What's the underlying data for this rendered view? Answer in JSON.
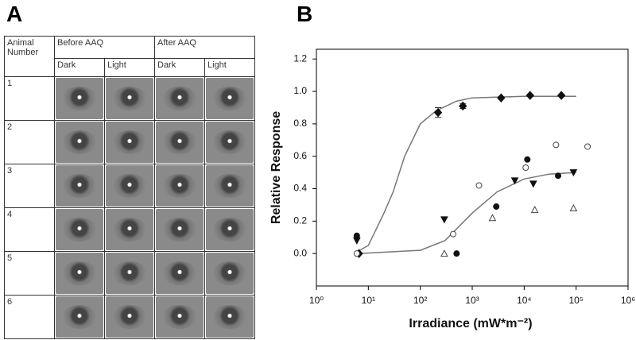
{
  "panel_a": {
    "label": "A",
    "table": {
      "header": [
        "Animal Number",
        "Before AAQ",
        "After AAQ"
      ],
      "subheader": [
        "Dark",
        "Light",
        "Dark",
        "Light"
      ],
      "rows": [
        "1",
        "2",
        "3",
        "4",
        "5",
        "6"
      ]
    }
  },
  "chart_data": {
    "type": "scatter",
    "label": "B",
    "x_label": "Irradiance (mW*m⁻²)",
    "y_label": "Relative Response",
    "x_log": true,
    "xlim": [
      1,
      1000000
    ],
    "xticks": [
      {
        "value": 1,
        "label": "10⁰"
      },
      {
        "value": 10,
        "label": "10¹"
      },
      {
        "value": 100,
        "label": "10²"
      },
      {
        "value": 1000,
        "label": "10³"
      },
      {
        "value": 10000,
        "label": "10⁴"
      },
      {
        "value": 100000,
        "label": "10⁵"
      },
      {
        "value": 1000000,
        "label": "10⁶"
      }
    ],
    "ylim": [
      -0.2,
      1.26
    ],
    "yticks": [
      {
        "value": 0,
        "label": "0.0"
      },
      0.2,
      0.4,
      0.6,
      0.8,
      {
        "value": 1,
        "label": "1.0"
      },
      1.2
    ],
    "series": [
      {
        "mode": "line",
        "color": "#777777",
        "x": [
          6,
          10,
          20,
          30,
          50,
          100,
          200,
          500,
          1000,
          10000,
          100000
        ],
        "values": [
          0.01,
          0.05,
          0.25,
          0.38,
          0.6,
          0.8,
          0.88,
          0.94,
          0.96,
          0.97,
          0.97
        ]
      },
      {
        "mode": "line",
        "color": "#777777",
        "x": [
          6,
          100,
          300,
          1000,
          3000,
          10000,
          30000,
          100000
        ],
        "values": [
          0,
          0.02,
          0.08,
          0.25,
          0.38,
          0.46,
          0.49,
          0.5
        ]
      },
      {
        "mode": "markers",
        "marker": "diamond",
        "filled": true,
        "color": "#111111",
        "x": [
          6.6,
          220,
          660,
          3600,
          13000,
          52000
        ],
        "values": [
          0,
          0.87,
          0.91,
          0.96,
          0.975,
          0.975
        ],
        "errors": [
          null,
          0.03,
          0.015,
          null,
          null,
          null
        ]
      },
      {
        "mode": "markers",
        "marker": "circle",
        "filled": true,
        "color": "#111111",
        "x": [
          6,
          500,
          2900,
          11500,
          45000
        ],
        "values": [
          0.11,
          0,
          0.29,
          0.58,
          0.48
        ]
      },
      {
        "mode": "markers",
        "marker": "triangle-down",
        "filled": true,
        "color": "#111111",
        "x": [
          6,
          290,
          6600,
          15000,
          89000
        ],
        "values": [
          0.08,
          0.21,
          0.45,
          0.43,
          0.5
        ]
      },
      {
        "mode": "markers",
        "marker": "circle",
        "filled": false,
        "color": "#444444",
        "x": [
          6,
          430,
          1350,
          10700,
          41000,
          166000
        ],
        "values": [
          0,
          0.12,
          0.42,
          0.53,
          0.67,
          0.66
        ]
      },
      {
        "mode": "markers",
        "marker": "triangle-up",
        "filled": false,
        "color": "#444444",
        "x": [
          290,
          2450,
          16000,
          89000
        ],
        "values": [
          0,
          0.22,
          0.27,
          0.28
        ]
      }
    ]
  }
}
